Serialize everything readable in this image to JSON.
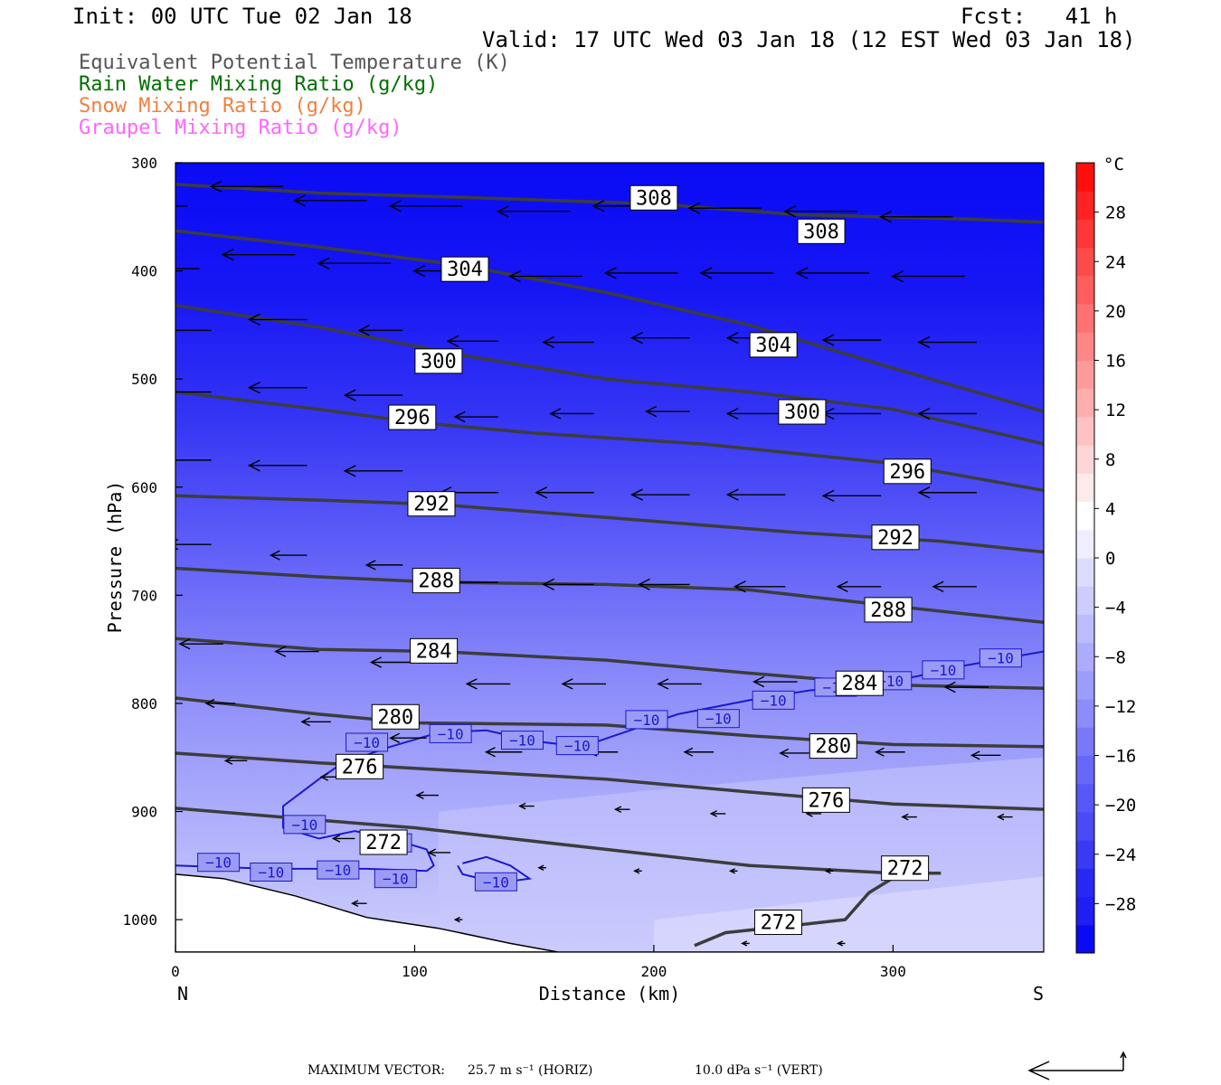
{
  "header": {
    "init": "Init: 00 UTC Tue 02 Jan 18",
    "fcst": "Fcst:   41 h",
    "valid": "Valid: 17 UTC Wed 03 Jan 18 (12 EST Wed 03 Jan 18)"
  },
  "legend": [
    {
      "label": "Equivalent Potential Temperature (K)",
      "color": "#555555"
    },
    {
      "label": "Rain Water Mixing Ratio (g/kg)",
      "color": "#007000"
    },
    {
      "label": "Snow Mixing Ratio (g/kg)",
      "color": "#f08040"
    },
    {
      "label": "Graupel Mixing Ratio (g/kg)",
      "color": "#ff66ff"
    }
  ],
  "footer": {
    "max_vector_label": "MAXIMUM VECTOR:",
    "horiz": "25.7 m s⁻¹ (HORIZ)",
    "vert": "10.0 dPa s⁻¹ (VERT)"
  },
  "chart_data": {
    "type": "heatmap",
    "title": "",
    "xlabel": "Distance (km)",
    "ylabel": "Pressure (hPa)",
    "xlim": [
      0,
      363
    ],
    "ylim": [
      1030,
      300
    ],
    "x_ticks": [
      0,
      100,
      200,
      300
    ],
    "y_ticks": [
      300,
      400,
      500,
      600,
      700,
      800,
      900,
      1000
    ],
    "x_end_labels": {
      "left": "N",
      "right": "S"
    },
    "colorbar": {
      "unit": "°C",
      "tick_labels": [
        "28",
        "24",
        "20",
        "16",
        "12",
        "8",
        "4",
        "0",
        "−4",
        "−8",
        "−12",
        "−16",
        "−20",
        "−24",
        "−28"
      ],
      "tick_values": [
        28,
        24,
        20,
        16,
        12,
        8,
        4,
        0,
        -4,
        -8,
        -12,
        -16,
        -20,
        -24,
        -28
      ],
      "range": [
        -32,
        32
      ],
      "colors": [
        "#0a0af5",
        "#1e1ef5",
        "#2828f5",
        "#3a3af5",
        "#4a4af7",
        "#5858f7",
        "#6868f8",
        "#7878f9",
        "#8c8cfa",
        "#9c9cfb",
        "#acacfc",
        "#bcbcfd",
        "#ccccfd",
        "#dcdcfe",
        "#eeeeff",
        "#ffffff",
        "#ffeaea",
        "#ffd6d6",
        "#ffc2c2",
        "#ffaeae",
        "#ff9a9a",
        "#ff8686",
        "#ff7272",
        "#ff5e5e",
        "#ff4a4a",
        "#ff3636",
        "#ff2222",
        "#ff0e0e"
      ]
    },
    "theta_e_contours": [
      {
        "value": 308,
        "points": [
          [
            0,
            320
          ],
          [
            60,
            328
          ],
          [
            120,
            332
          ],
          [
            200,
            338
          ],
          [
            260,
            348
          ],
          [
            330,
            352
          ],
          [
            363,
            355
          ]
        ],
        "labels": [
          [
            200,
            332
          ],
          [
            270,
            363
          ]
        ]
      },
      {
        "value": 304,
        "points": [
          [
            0,
            363
          ],
          [
            60,
            378
          ],
          [
            120,
            395
          ],
          [
            180,
            420
          ],
          [
            240,
            450
          ],
          [
            300,
            490
          ],
          [
            363,
            530
          ]
        ],
        "labels": [
          [
            121,
            398
          ],
          [
            250,
            468
          ]
        ]
      },
      {
        "value": 300,
        "points": [
          [
            0,
            432
          ],
          [
            60,
            452
          ],
          [
            120,
            478
          ],
          [
            180,
            500
          ],
          [
            240,
            512
          ],
          [
            300,
            528
          ],
          [
            363,
            560
          ]
        ],
        "labels": [
          [
            110,
            483
          ],
          [
            262,
            530
          ]
        ]
      },
      {
        "value": 296,
        "points": [
          [
            0,
            512
          ],
          [
            60,
            528
          ],
          [
            100,
            540
          ],
          [
            150,
            550
          ],
          [
            220,
            560
          ],
          [
            300,
            578
          ],
          [
            363,
            603
          ]
        ],
        "labels": [
          [
            99,
            535
          ],
          [
            306,
            585
          ]
        ]
      },
      {
        "value": 292,
        "points": [
          [
            0,
            608
          ],
          [
            60,
            612
          ],
          [
            110,
            616
          ],
          [
            180,
            628
          ],
          [
            260,
            642
          ],
          [
            320,
            650
          ],
          [
            363,
            660
          ]
        ],
        "labels": [
          [
            107,
            615
          ],
          [
            301,
            646
          ]
        ]
      },
      {
        "value": 288,
        "points": [
          [
            0,
            675
          ],
          [
            60,
            683
          ],
          [
            110,
            688
          ],
          [
            180,
            690
          ],
          [
            240,
            695
          ],
          [
            300,
            710
          ],
          [
            363,
            725
          ]
        ],
        "labels": [
          [
            109,
            686
          ],
          [
            298,
            713
          ]
        ]
      },
      {
        "value": 284,
        "points": [
          [
            0,
            740
          ],
          [
            60,
            750
          ],
          [
            110,
            752
          ],
          [
            180,
            760
          ],
          [
            240,
            772
          ],
          [
            300,
            783
          ],
          [
            363,
            786
          ]
        ],
        "labels": [
          [
            108,
            751
          ],
          [
            286,
            781
          ]
        ]
      },
      {
        "value": 280,
        "points": [
          [
            0,
            795
          ],
          [
            60,
            810
          ],
          [
            100,
            818
          ],
          [
            180,
            820
          ],
          [
            240,
            830
          ],
          [
            300,
            838
          ],
          [
            363,
            840
          ]
        ],
        "labels": [
          [
            92,
            812
          ],
          [
            275,
            839
          ]
        ]
      },
      {
        "value": 276,
        "points": [
          [
            0,
            846
          ],
          [
            60,
            855
          ],
          [
            100,
            860
          ],
          [
            180,
            870
          ],
          [
            240,
            882
          ],
          [
            300,
            893
          ],
          [
            363,
            898
          ]
        ],
        "labels": [
          [
            77,
            858
          ],
          [
            272,
            889
          ]
        ]
      },
      {
        "value": 272,
        "points": [
          [
            0,
            897
          ],
          [
            60,
            908
          ],
          [
            100,
            915
          ],
          [
            180,
            935
          ],
          [
            240,
            950
          ],
          [
            300,
            957
          ],
          [
            320,
            957
          ]
        ],
        "labels": [
          [
            87,
            928
          ],
          [
            305,
            952
          ]
        ]
      },
      {
        "value": 272,
        "points": [
          [
            217,
            1024
          ],
          [
            230,
            1012
          ],
          [
            260,
            1005
          ],
          [
            280,
            1000
          ],
          [
            290,
            975
          ],
          [
            310,
            948
          ]
        ],
        "labels": [
          [
            252,
            1002
          ]
        ]
      }
    ],
    "temp_contours_minus10": [
      {
        "value": -10,
        "points": [
          [
            0,
            950
          ],
          [
            40,
            953
          ],
          [
            80,
            953
          ],
          [
            105,
            955
          ],
          [
            108,
            950
          ],
          [
            105,
            935
          ],
          [
            90,
            925
          ],
          [
            75,
            918
          ],
          [
            60,
            925
          ],
          [
            45,
            915
          ],
          [
            45,
            895
          ],
          [
            60,
            870
          ],
          [
            70,
            855
          ],
          [
            90,
            840
          ],
          [
            110,
            827
          ],
          [
            130,
            825
          ],
          [
            150,
            835
          ],
          [
            170,
            840
          ],
          [
            190,
            825
          ],
          [
            210,
            810
          ],
          [
            240,
            797
          ],
          [
            265,
            788
          ],
          [
            290,
            783
          ],
          [
            310,
            775
          ],
          [
            330,
            765
          ],
          [
            363,
            752
          ]
        ],
        "labels": [
          [
            18,
            947
          ],
          [
            40,
            956
          ],
          [
            68,
            954
          ],
          [
            92,
            962
          ],
          [
            54,
            912
          ],
          [
            90,
            929
          ],
          [
            80,
            836
          ],
          [
            115,
            828
          ],
          [
            145,
            834
          ],
          [
            168,
            839
          ],
          [
            197,
            815
          ],
          [
            227,
            814
          ],
          [
            250,
            797
          ],
          [
            276,
            785
          ],
          [
            299,
            779
          ],
          [
            321,
            769
          ],
          [
            345,
            758
          ]
        ]
      },
      {
        "value": -10,
        "points": [
          [
            120,
            948
          ],
          [
            130,
            942
          ],
          [
            140,
            950
          ],
          [
            148,
            962
          ],
          [
            135,
            966
          ],
          [
            120,
            958
          ],
          [
            118,
            950
          ]
        ],
        "labels": [
          [
            134,
            965
          ]
        ]
      }
    ],
    "terrain_pressure": [
      [
        0,
        958
      ],
      [
        20,
        962
      ],
      [
        50,
        978
      ],
      [
        80,
        998
      ],
      [
        110,
        1008
      ],
      [
        140,
        1022
      ],
      [
        160,
        1030
      ],
      [
        363,
        1030
      ]
    ],
    "wind_vectors": [
      {
        "x": 5,
        "p": 340,
        "u": -1.0
      },
      {
        "x": 45,
        "p": 322,
        "u": -1.0
      },
      {
        "x": 80,
        "p": 335,
        "u": -1.0
      },
      {
        "x": 120,
        "p": 340,
        "u": -1.0
      },
      {
        "x": 165,
        "p": 345,
        "u": -1.0
      },
      {
        "x": 205,
        "p": 340,
        "u": -1.0
      },
      {
        "x": 245,
        "p": 342,
        "u": -1.0
      },
      {
        "x": 285,
        "p": 345,
        "u": -1.0
      },
      {
        "x": 325,
        "p": 350,
        "u": -1.0
      },
      {
        "x": 10,
        "p": 398,
        "u": -1.0
      },
      {
        "x": 50,
        "p": 385,
        "u": -1.0
      },
      {
        "x": 90,
        "p": 393,
        "u": -1.0
      },
      {
        "x": 130,
        "p": 400,
        "u": -1.0
      },
      {
        "x": 170,
        "p": 405,
        "u": -1.0
      },
      {
        "x": 210,
        "p": 402,
        "u": -1.0
      },
      {
        "x": 250,
        "p": 402,
        "u": -1.0
      },
      {
        "x": 290,
        "p": 402,
        "u": -1.0
      },
      {
        "x": 330,
        "p": 405,
        "u": -1.0
      },
      {
        "x": 15,
        "p": 455,
        "u": -0.8
      },
      {
        "x": 55,
        "p": 445,
        "u": -0.8
      },
      {
        "x": 95,
        "p": 455,
        "u": -0.6
      },
      {
        "x": 135,
        "p": 465,
        "u": -0.7
      },
      {
        "x": 175,
        "p": 466,
        "u": -0.7
      },
      {
        "x": 215,
        "p": 462,
        "u": -0.8
      },
      {
        "x": 255,
        "p": 462,
        "u": -0.8
      },
      {
        "x": 295,
        "p": 464,
        "u": -0.8
      },
      {
        "x": 335,
        "p": 466,
        "u": -0.8
      },
      {
        "x": 15,
        "p": 512,
        "u": -0.9
      },
      {
        "x": 55,
        "p": 508,
        "u": -0.8
      },
      {
        "x": 95,
        "p": 515,
        "u": -0.8
      },
      {
        "x": 135,
        "p": 535,
        "u": -0.6
      },
      {
        "x": 175,
        "p": 532,
        "u": -0.6
      },
      {
        "x": 215,
        "p": 530,
        "u": -0.6
      },
      {
        "x": 255,
        "p": 532,
        "u": -0.8
      },
      {
        "x": 295,
        "p": 532,
        "u": -0.8
      },
      {
        "x": 335,
        "p": 532,
        "u": -0.8
      },
      {
        "x": 15,
        "p": 575,
        "u": -0.8
      },
      {
        "x": 55,
        "p": 580,
        "u": -0.8
      },
      {
        "x": 95,
        "p": 585,
        "u": -0.8
      },
      {
        "x": 135,
        "p": 605,
        "u": -0.8
      },
      {
        "x": 175,
        "p": 605,
        "u": -0.8
      },
      {
        "x": 215,
        "p": 607,
        "u": -0.8
      },
      {
        "x": 255,
        "p": 607,
        "u": -0.8
      },
      {
        "x": 295,
        "p": 608,
        "u": -0.8
      },
      {
        "x": 335,
        "p": 605,
        "u": -0.8
      },
      {
        "x": 15,
        "p": 653,
        "u": -0.6
      },
      {
        "x": 55,
        "p": 663,
        "u": -0.5
      },
      {
        "x": 95,
        "p": 672,
        "u": -0.5
      },
      {
        "x": 135,
        "p": 688,
        "u": -0.7
      },
      {
        "x": 175,
        "p": 690,
        "u": -0.7
      },
      {
        "x": 215,
        "p": 690,
        "u": -0.7
      },
      {
        "x": 255,
        "p": 692,
        "u": -0.7
      },
      {
        "x": 295,
        "p": 692,
        "u": -0.6
      },
      {
        "x": 335,
        "p": 692,
        "u": -0.6
      },
      {
        "x": 20,
        "p": 745,
        "u": -0.6
      },
      {
        "x": 60,
        "p": 752,
        "u": -0.6
      },
      {
        "x": 100,
        "p": 762,
        "u": -0.6
      },
      {
        "x": 140,
        "p": 782,
        "u": -0.6
      },
      {
        "x": 180,
        "p": 782,
        "u": -0.6
      },
      {
        "x": 220,
        "p": 782,
        "u": -0.6
      },
      {
        "x": 260,
        "p": 780,
        "u": -0.6
      },
      {
        "x": 300,
        "p": 778,
        "u": -0.6
      },
      {
        "x": 340,
        "p": 785,
        "u": -0.6
      },
      {
        "x": 25,
        "p": 800,
        "u": -0.4
      },
      {
        "x": 65,
        "p": 817,
        "u": -0.4
      },
      {
        "x": 105,
        "p": 832,
        "u": -0.5
      },
      {
        "x": 145,
        "p": 845,
        "u": -0.5
      },
      {
        "x": 185,
        "p": 845,
        "u": -0.4
      },
      {
        "x": 225,
        "p": 845,
        "u": -0.4
      },
      {
        "x": 265,
        "p": 846,
        "u": -0.4
      },
      {
        "x": 305,
        "p": 845,
        "u": -0.4
      },
      {
        "x": 345,
        "p": 848,
        "u": -0.4
      },
      {
        "x": 30,
        "p": 853,
        "u": -0.3
      },
      {
        "x": 70,
        "p": 868,
        "u": -0.3
      },
      {
        "x": 110,
        "p": 885,
        "u": -0.3
      },
      {
        "x": 150,
        "p": 895,
        "u": -0.2
      },
      {
        "x": 190,
        "p": 898,
        "u": -0.2
      },
      {
        "x": 230,
        "p": 902,
        "u": -0.2
      },
      {
        "x": 270,
        "p": 902,
        "u": -0.2
      },
      {
        "x": 310,
        "p": 905,
        "u": -0.2
      },
      {
        "x": 350,
        "p": 905,
        "u": -0.2
      },
      {
        "x": 75,
        "p": 925,
        "u": -0.3
      },
      {
        "x": 115,
        "p": 938,
        "u": -0.3
      },
      {
        "x": 155,
        "p": 952,
        "u": -0.1
      },
      {
        "x": 195,
        "p": 955,
        "u": -0.1
      },
      {
        "x": 235,
        "p": 955,
        "u": -0.1
      },
      {
        "x": 275,
        "p": 955,
        "u": -0.1
      },
      {
        "x": 315,
        "p": 955,
        "u": -0.1
      },
      {
        "x": 80,
        "p": 985,
        "u": -0.2
      },
      {
        "x": 120,
        "p": 1000,
        "u": -0.1
      },
      {
        "x": 240,
        "p": 1022,
        "u": -0.1
      },
      {
        "x": 280,
        "p": 1022,
        "u": -0.1
      }
    ]
  }
}
